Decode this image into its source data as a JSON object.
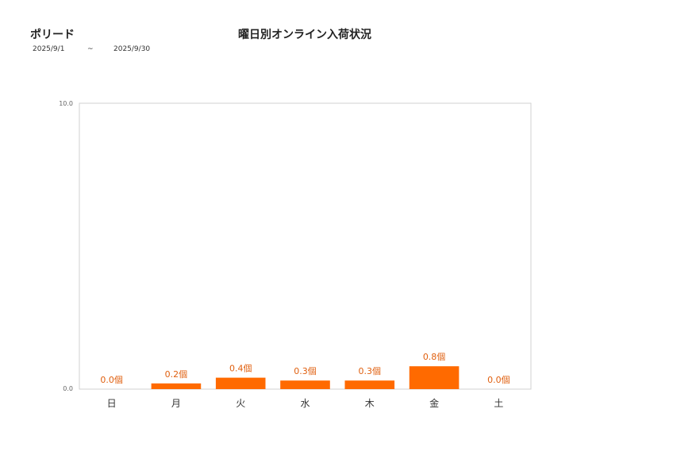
{
  "header": {
    "store_name": "ポリード",
    "period_start": "2025/9/1",
    "period_sep": "~",
    "period_end": "2025/9/30"
  },
  "chart_data": {
    "type": "bar",
    "title": "曜日別オンライン入荷状況",
    "categories": [
      "日",
      "月",
      "火",
      "水",
      "木",
      "金",
      "土"
    ],
    "values": [
      0.0,
      0.2,
      0.4,
      0.3,
      0.3,
      0.8,
      0.0
    ],
    "value_suffix": "個",
    "ylim": [
      0,
      10
    ],
    "y_tick_labels": [
      "0.0",
      "10.0"
    ],
    "xlabel": "",
    "ylabel": "",
    "grid": false,
    "legend": "none",
    "bar_color": "#ff6a00",
    "label_color": "#e06010"
  }
}
